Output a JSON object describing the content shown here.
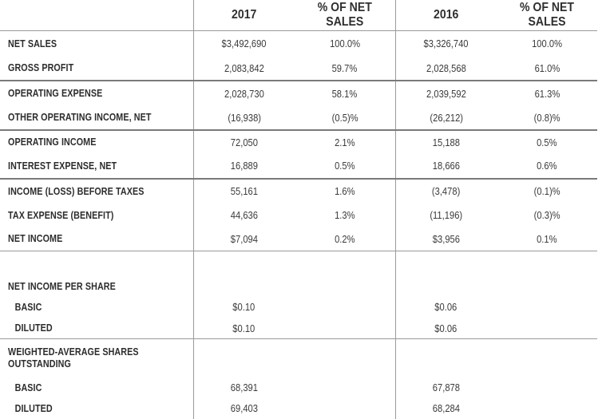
{
  "headers": {
    "blank": "",
    "y1": "2017",
    "p1": "% OF NET SALES",
    "y2": "2016",
    "p2": "% OF NET SALES"
  },
  "rows": [
    {
      "label": "NET SALES",
      "v1": "$3,492,690",
      "p1": "100.0%",
      "v2": "$3,326,740",
      "p2": "100.0%"
    },
    {
      "label": "GROSS PROFIT",
      "v1": "2,083,842",
      "p1": "59.7%",
      "v2": "2,028,568",
      "p2": "61.0%"
    },
    {
      "label": "OPERATING EXPENSE",
      "v1": "2,028,730",
      "p1": "58.1%",
      "v2": "2,039,592",
      "p2": "61.3%"
    },
    {
      "label": "OTHER OPERATING INCOME, NET",
      "v1": "(16,938)",
      "p1": "(0.5)%",
      "v2": "(26,212)",
      "p2": "(0.8)%"
    },
    {
      "label": "OPERATING INCOME",
      "v1": "72,050",
      "p1": "2.1%",
      "v2": "15,188",
      "p2": "0.5%"
    },
    {
      "label": "INTEREST EXPENSE, NET",
      "v1": "16,889",
      "p1": "0.5%",
      "v2": "18,666",
      "p2": "0.6%"
    },
    {
      "label": "INCOME (LOSS) BEFORE TAXES",
      "v1": "55,161",
      "p1": "1.6%",
      "v2": "(3,478)",
      "p2": "(0.1)%"
    },
    {
      "label": "TAX EXPENSE (BENEFIT)",
      "v1": "44,636",
      "p1": "1.3%",
      "v2": "(11,196)",
      "p2": "(0.3)%"
    },
    {
      "label": "NET INCOME",
      "v1": "$7,094",
      "p1": "0.2%",
      "v2": "$3,956",
      "p2": "0.1%"
    }
  ],
  "per_share": {
    "title": "NET INCOME PER SHARE",
    "basic_label": "BASIC",
    "basic_v1": "$0.10",
    "basic_v2": "$0.06",
    "diluted_label": "DILUTED",
    "diluted_v1": "$0.10",
    "diluted_v2": "$0.06"
  },
  "shares": {
    "title_line1": "WEIGHTED-AVERAGE SHARES",
    "title_line2": "OUTSTANDING",
    "basic_label": "BASIC",
    "basic_v1": "68,391",
    "basic_v2": "67,878",
    "diluted_label": "DILUTED",
    "diluted_v1": "69,403",
    "diluted_v2": "68,284"
  }
}
